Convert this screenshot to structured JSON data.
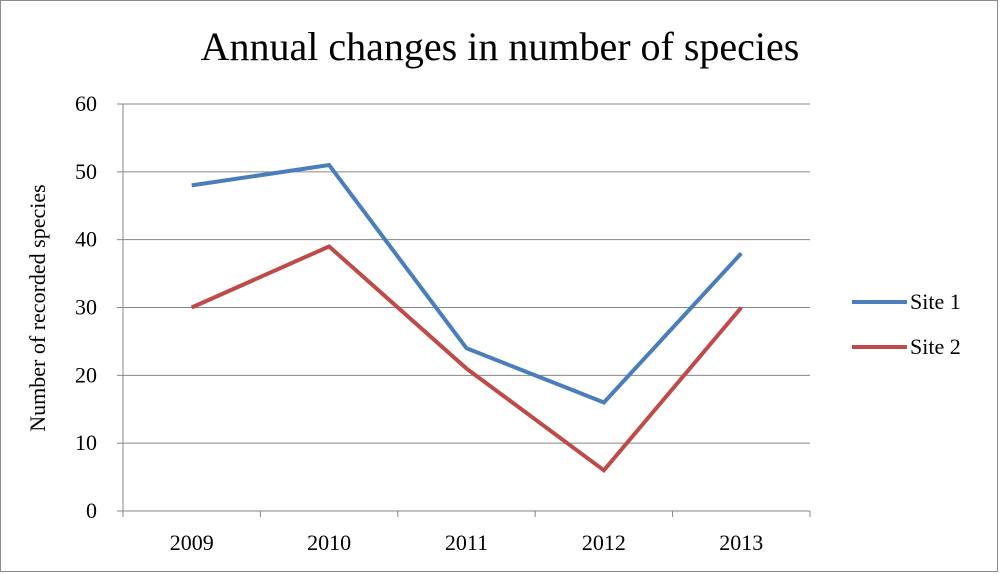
{
  "chart_data": {
    "type": "line",
    "title": "Annual changes in number of species",
    "xlabel": "",
    "ylabel": "Number of recorded species",
    "categories": [
      "2009",
      "2010",
      "2011",
      "2012",
      "2013"
    ],
    "ylim": [
      0,
      60
    ],
    "yticks": [
      0,
      10,
      20,
      30,
      40,
      50,
      60
    ],
    "grid": true,
    "legend_position": "right",
    "series": [
      {
        "name": "Site 1",
        "color": "#4a7ebb",
        "values": [
          48,
          51,
          24,
          16,
          38
        ]
      },
      {
        "name": "Site 2",
        "color": "#be4b48",
        "values": [
          30,
          39,
          21,
          6,
          30
        ]
      }
    ]
  }
}
